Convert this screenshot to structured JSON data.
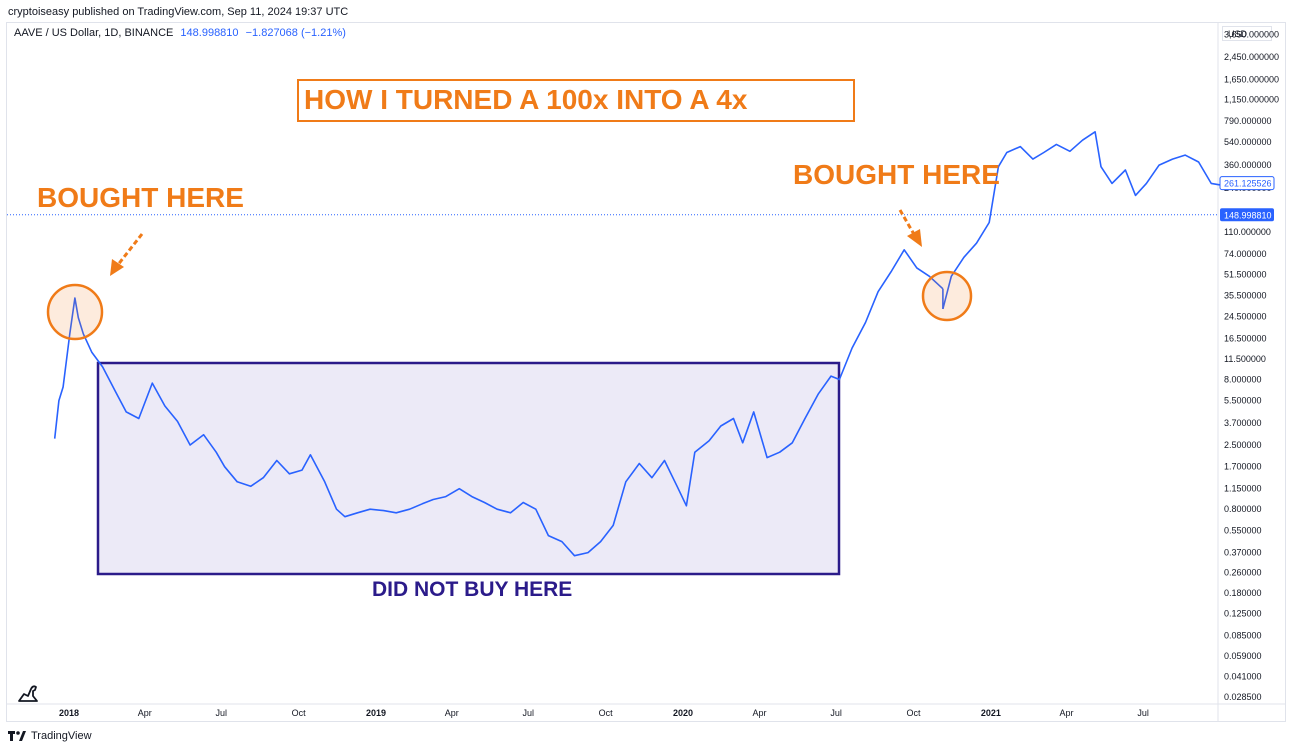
{
  "header": {
    "publisher": "cryptoiseasy published on TradingView.com, Sep 11, 2024 19:37 UTC",
    "symbol": "AAVE / US Dollar, 1D, BINANCE",
    "last_price": "148.998810",
    "change": "−1.827068 (−1.21%)",
    "currency": "USD"
  },
  "footer": {
    "brand": "TradingView",
    "logo_icon": "tradingview-logo-icon",
    "dino_icon": "dino-icon"
  },
  "annotations": {
    "title": "HOW I TURNED A 100x INTO A 4x",
    "bought_left": "BOUGHT HERE",
    "bought_right": "BOUGHT HERE",
    "did_not_buy": "DID NOT BUY HERE"
  },
  "colors": {
    "line": "#2962ff",
    "annotation_orange": "#f07b18",
    "box_border": "#2b1b8a",
    "box_fill": "#e6e3f4",
    "price_label_bg": "#2962ff"
  },
  "chart_data": {
    "type": "line",
    "title": "",
    "xlabel": "",
    "ylabel": "",
    "log_scale": true,
    "grid": false,
    "x_ticks": [
      "2018",
      "Apr",
      "Jul",
      "Oct",
      "2019",
      "Apr",
      "Jul",
      "Oct",
      "2020",
      "Apr",
      "Jul",
      "Oct",
      "2021",
      "Apr",
      "Jul"
    ],
    "y_ticks": [
      "3,650.000000",
      "2,450.000000",
      "1,650.000000",
      "1,150.000000",
      "790.000000",
      "540.000000",
      "360.000000",
      "240.000000",
      "110.000000",
      "74.000000",
      "51.500000",
      "35.500000",
      "24.500000",
      "16.500000",
      "11.500000",
      "8.000000",
      "5.500000",
      "3.700000",
      "2.500000",
      "1.700000",
      "1.150000",
      "0.800000",
      "0.550000",
      "0.370000",
      "0.260000",
      "0.180000",
      "0.125000",
      "0.085000",
      "0.059000",
      "0.041000",
      "0.028500"
    ],
    "price_labels": [
      {
        "value": "261.125526",
        "style": "outline"
      },
      {
        "value": "148.998810",
        "style": "filled"
      }
    ],
    "series": [
      {
        "x": [
          "2017-12-15",
          "2017-12-20",
          "2017-12-25",
          "2018-01-02",
          "2018-01-08",
          "2018-01-12",
          "2018-01-18",
          "2018-01-28",
          "2018-02-10",
          "2018-02-25",
          "2018-03-10",
          "2018-03-25",
          "2018-04-10",
          "2018-04-25",
          "2018-05-10",
          "2018-05-25",
          "2018-06-10",
          "2018-06-25",
          "2018-07-05",
          "2018-07-20",
          "2018-08-05",
          "2018-08-20",
          "2018-09-05",
          "2018-09-20",
          "2018-10-05",
          "2018-10-15",
          "2018-11-01",
          "2018-11-15",
          "2018-11-25",
          "2018-12-10",
          "2018-12-25",
          "2019-01-10",
          "2019-01-25",
          "2019-02-10",
          "2019-02-25",
          "2019-03-10",
          "2019-03-25",
          "2019-04-10",
          "2019-04-25",
          "2019-05-10",
          "2019-05-25",
          "2019-06-10",
          "2019-06-25",
          "2019-07-10",
          "2019-07-25",
          "2019-08-10",
          "2019-08-25",
          "2019-09-10",
          "2019-09-25",
          "2019-10-10",
          "2019-10-25",
          "2019-11-10",
          "2019-11-25",
          "2019-12-10",
          "2019-12-25",
          "2020-01-05",
          "2020-01-15",
          "2020-02-01",
          "2020-02-15",
          "2020-03-01",
          "2020-03-12",
          "2020-03-25",
          "2020-04-10",
          "2020-04-25",
          "2020-05-10",
          "2020-05-25",
          "2020-06-10",
          "2020-06-25",
          "2020-07-05",
          "2020-07-20",
          "2020-08-05",
          "2020-08-20",
          "2020-09-05",
          "2020-09-20",
          "2020-10-05",
          "2020-10-20",
          "2020-11-05",
          "2020-11-05",
          "2020-11-15",
          "2020-11-30",
          "2020-12-15",
          "2020-12-30",
          "2021-01-10",
          "2021-01-20",
          "2021-02-05",
          "2021-02-20",
          "2021-03-05",
          "2021-03-20",
          "2021-04-05",
          "2021-04-20",
          "2021-05-05",
          "2021-05-12",
          "2021-05-25",
          "2021-06-10",
          "2021-06-22",
          "2021-07-05",
          "2021-07-20",
          "2021-08-05",
          "2021-08-20",
          "2021-09-05",
          "2021-09-20",
          "2021-10-05",
          "2021-10-15"
        ],
        "y": [
          2.8,
          5.5,
          7.0,
          18,
          34,
          24,
          18,
          13,
          10,
          6.5,
          4.5,
          4.0,
          7.5,
          5.0,
          3.8,
          2.5,
          3.0,
          2.2,
          1.7,
          1.3,
          1.2,
          1.4,
          1.9,
          1.5,
          1.6,
          2.1,
          1.3,
          0.8,
          0.7,
          0.75,
          0.8,
          0.78,
          0.75,
          0.8,
          0.88,
          0.95,
          1.0,
          1.15,
          1.0,
          0.9,
          0.8,
          0.75,
          0.9,
          0.8,
          0.5,
          0.45,
          0.35,
          0.37,
          0.45,
          0.6,
          1.3,
          1.8,
          1.4,
          1.9,
          1.2,
          0.85,
          2.2,
          2.7,
          3.5,
          4.0,
          2.6,
          4.5,
          2.0,
          2.2,
          2.6,
          4.0,
          6.2,
          8.5,
          8.0,
          14,
          22,
          38,
          55,
          80,
          58,
          50,
          40,
          28,
          50,
          70,
          90,
          130,
          350,
          450,
          500,
          400,
          450,
          520,
          460,
          560,
          650,
          350,
          260,
          330,
          210,
          260,
          360,
          400,
          430,
          380,
          260,
          250,
          240
        ],
        "segment_breaks": [
          77
        ]
      }
    ]
  }
}
